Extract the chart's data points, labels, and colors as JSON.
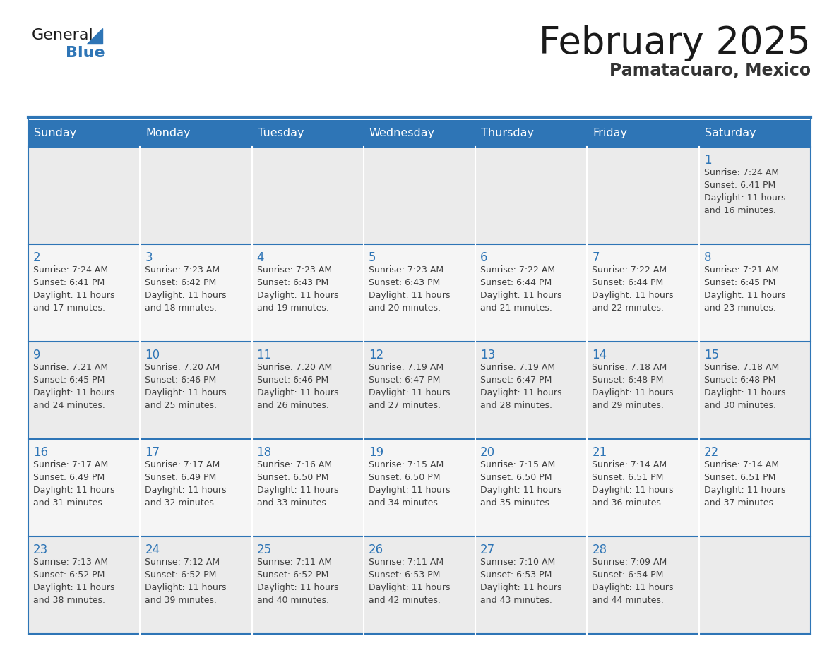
{
  "title": "February 2025",
  "subtitle": "Pamatacuaro, Mexico",
  "header_bg_color": "#2E75B6",
  "header_text_color": "#FFFFFF",
  "cell_bg_even": "#EBEBEB",
  "cell_bg_odd": "#F5F5F5",
  "day_number_color": "#2E75B6",
  "text_color": "#404040",
  "border_color": "#2E75B6",
  "logo_general_color": "#1a1a1a",
  "logo_blue_color": "#2E75B6",
  "logo_triangle_color": "#2E75B6",
  "days_of_week": [
    "Sunday",
    "Monday",
    "Tuesday",
    "Wednesday",
    "Thursday",
    "Friday",
    "Saturday"
  ],
  "weeks": [
    [
      {
        "day": 0,
        "info": ""
      },
      {
        "day": 0,
        "info": ""
      },
      {
        "day": 0,
        "info": ""
      },
      {
        "day": 0,
        "info": ""
      },
      {
        "day": 0,
        "info": ""
      },
      {
        "day": 0,
        "info": ""
      },
      {
        "day": 1,
        "info": "Sunrise: 7:24 AM\nSunset: 6:41 PM\nDaylight: 11 hours\nand 16 minutes."
      }
    ],
    [
      {
        "day": 2,
        "info": "Sunrise: 7:24 AM\nSunset: 6:41 PM\nDaylight: 11 hours\nand 17 minutes."
      },
      {
        "day": 3,
        "info": "Sunrise: 7:23 AM\nSunset: 6:42 PM\nDaylight: 11 hours\nand 18 minutes."
      },
      {
        "day": 4,
        "info": "Sunrise: 7:23 AM\nSunset: 6:43 PM\nDaylight: 11 hours\nand 19 minutes."
      },
      {
        "day": 5,
        "info": "Sunrise: 7:23 AM\nSunset: 6:43 PM\nDaylight: 11 hours\nand 20 minutes."
      },
      {
        "day": 6,
        "info": "Sunrise: 7:22 AM\nSunset: 6:44 PM\nDaylight: 11 hours\nand 21 minutes."
      },
      {
        "day": 7,
        "info": "Sunrise: 7:22 AM\nSunset: 6:44 PM\nDaylight: 11 hours\nand 22 minutes."
      },
      {
        "day": 8,
        "info": "Sunrise: 7:21 AM\nSunset: 6:45 PM\nDaylight: 11 hours\nand 23 minutes."
      }
    ],
    [
      {
        "day": 9,
        "info": "Sunrise: 7:21 AM\nSunset: 6:45 PM\nDaylight: 11 hours\nand 24 minutes."
      },
      {
        "day": 10,
        "info": "Sunrise: 7:20 AM\nSunset: 6:46 PM\nDaylight: 11 hours\nand 25 minutes."
      },
      {
        "day": 11,
        "info": "Sunrise: 7:20 AM\nSunset: 6:46 PM\nDaylight: 11 hours\nand 26 minutes."
      },
      {
        "day": 12,
        "info": "Sunrise: 7:19 AM\nSunset: 6:47 PM\nDaylight: 11 hours\nand 27 minutes."
      },
      {
        "day": 13,
        "info": "Sunrise: 7:19 AM\nSunset: 6:47 PM\nDaylight: 11 hours\nand 28 minutes."
      },
      {
        "day": 14,
        "info": "Sunrise: 7:18 AM\nSunset: 6:48 PM\nDaylight: 11 hours\nand 29 minutes."
      },
      {
        "day": 15,
        "info": "Sunrise: 7:18 AM\nSunset: 6:48 PM\nDaylight: 11 hours\nand 30 minutes."
      }
    ],
    [
      {
        "day": 16,
        "info": "Sunrise: 7:17 AM\nSunset: 6:49 PM\nDaylight: 11 hours\nand 31 minutes."
      },
      {
        "day": 17,
        "info": "Sunrise: 7:17 AM\nSunset: 6:49 PM\nDaylight: 11 hours\nand 32 minutes."
      },
      {
        "day": 18,
        "info": "Sunrise: 7:16 AM\nSunset: 6:50 PM\nDaylight: 11 hours\nand 33 minutes."
      },
      {
        "day": 19,
        "info": "Sunrise: 7:15 AM\nSunset: 6:50 PM\nDaylight: 11 hours\nand 34 minutes."
      },
      {
        "day": 20,
        "info": "Sunrise: 7:15 AM\nSunset: 6:50 PM\nDaylight: 11 hours\nand 35 minutes."
      },
      {
        "day": 21,
        "info": "Sunrise: 7:14 AM\nSunset: 6:51 PM\nDaylight: 11 hours\nand 36 minutes."
      },
      {
        "day": 22,
        "info": "Sunrise: 7:14 AM\nSunset: 6:51 PM\nDaylight: 11 hours\nand 37 minutes."
      }
    ],
    [
      {
        "day": 23,
        "info": "Sunrise: 7:13 AM\nSunset: 6:52 PM\nDaylight: 11 hours\nand 38 minutes."
      },
      {
        "day": 24,
        "info": "Sunrise: 7:12 AM\nSunset: 6:52 PM\nDaylight: 11 hours\nand 39 minutes."
      },
      {
        "day": 25,
        "info": "Sunrise: 7:11 AM\nSunset: 6:52 PM\nDaylight: 11 hours\nand 40 minutes."
      },
      {
        "day": 26,
        "info": "Sunrise: 7:11 AM\nSunset: 6:53 PM\nDaylight: 11 hours\nand 42 minutes."
      },
      {
        "day": 27,
        "info": "Sunrise: 7:10 AM\nSunset: 6:53 PM\nDaylight: 11 hours\nand 43 minutes."
      },
      {
        "day": 28,
        "info": "Sunrise: 7:09 AM\nSunset: 6:54 PM\nDaylight: 11 hours\nand 44 minutes."
      },
      {
        "day": 0,
        "info": ""
      }
    ]
  ]
}
